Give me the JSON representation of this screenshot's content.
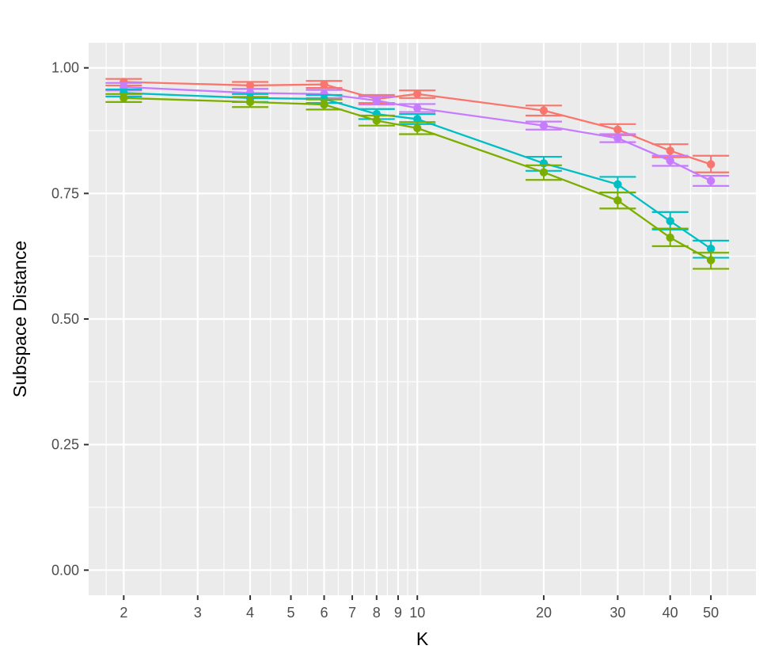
{
  "chart_data": {
    "type": "line",
    "xlabel": "K",
    "ylabel": "Subspace Distance",
    "x_scale": "log",
    "xlim": [
      1.65,
      64
    ],
    "ylim": [
      -0.05,
      1.05
    ],
    "x_ticks": [
      2,
      3,
      4,
      5,
      6,
      7,
      8,
      9,
      10,
      20,
      30,
      40,
      50
    ],
    "x_tick_labels": [
      "2",
      "3",
      "4",
      "5",
      "6",
      "7",
      "8",
      "9",
      "10",
      "20",
      "30",
      "40",
      "50"
    ],
    "y_ticks": [
      0.0,
      0.25,
      0.5,
      0.75,
      1.0
    ],
    "y_tick_labels": [
      "0.00",
      "0.25",
      "0.50",
      "0.75",
      "1.00"
    ],
    "grid": true,
    "legend": "none",
    "x": [
      2,
      4,
      6,
      8,
      10,
      20,
      30,
      40,
      50
    ],
    "series": [
      {
        "color": "#F8766D",
        "values": [
          0.972,
          0.965,
          0.967,
          0.938,
          0.948,
          0.915,
          0.877,
          0.835,
          0.808
        ],
        "err_low": [
          0.965,
          0.958,
          0.96,
          0.93,
          0.94,
          0.905,
          0.866,
          0.822,
          0.792
        ],
        "err_high": [
          0.978,
          0.972,
          0.974,
          0.946,
          0.955,
          0.925,
          0.888,
          0.848,
          0.825
        ]
      },
      {
        "color": "#C77CFF",
        "values": [
          0.962,
          0.95,
          0.948,
          0.935,
          0.92,
          0.885,
          0.86,
          0.815,
          0.775
        ],
        "err_low": [
          0.955,
          0.942,
          0.94,
          0.927,
          0.912,
          0.877,
          0.852,
          0.805,
          0.765
        ],
        "err_high": [
          0.97,
          0.958,
          0.956,
          0.943,
          0.928,
          0.893,
          0.868,
          0.825,
          0.785
        ]
      },
      {
        "color": "#00BFC4",
        "values": [
          0.95,
          0.94,
          0.938,
          0.908,
          0.898,
          0.81,
          0.768,
          0.695,
          0.64
        ],
        "err_low": [
          0.943,
          0.932,
          0.93,
          0.898,
          0.888,
          0.795,
          0.752,
          0.678,
          0.622
        ],
        "err_high": [
          0.957,
          0.948,
          0.946,
          0.918,
          0.908,
          0.823,
          0.783,
          0.713,
          0.656
        ]
      },
      {
        "color": "#7CAE00",
        "values": [
          0.94,
          0.932,
          0.927,
          0.895,
          0.88,
          0.792,
          0.736,
          0.662,
          0.617
        ],
        "err_low": [
          0.932,
          0.922,
          0.917,
          0.885,
          0.868,
          0.777,
          0.72,
          0.645,
          0.6
        ],
        "err_high": [
          0.948,
          0.942,
          0.937,
          0.905,
          0.892,
          0.806,
          0.752,
          0.68,
          0.632
        ]
      }
    ]
  }
}
